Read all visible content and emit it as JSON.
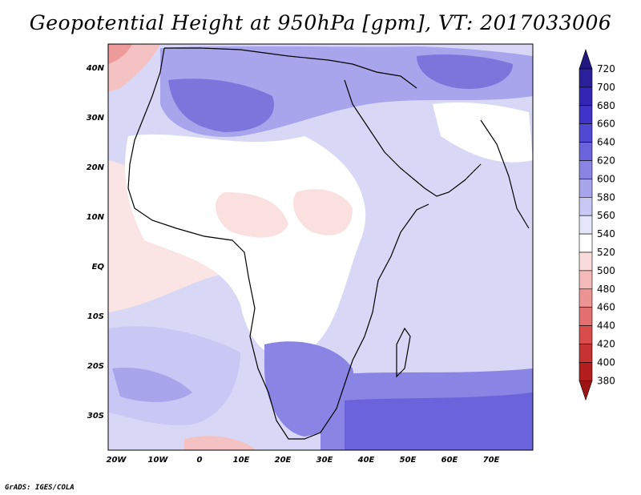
{
  "title": "Geopotential Height at 950hPa [gpm], VT: 2017033006",
  "credit": "GrADS: IGES/COLA",
  "lat_labels": [
    "40N",
    "30N",
    "20N",
    "10N",
    "EQ",
    "10S",
    "20S",
    "30S"
  ],
  "lon_labels": [
    "20W",
    "10W",
    "0",
    "10E",
    "20E",
    "30E",
    "40E",
    "50E",
    "60E",
    "70E"
  ],
  "colorbar": {
    "levels": [
      "720",
      "700",
      "680",
      "660",
      "640",
      "620",
      "600",
      "580",
      "560",
      "540",
      "520",
      "500",
      "480",
      "460",
      "440",
      "420",
      "400",
      "380"
    ],
    "colors": [
      "#2b1f9a",
      "#3326b4",
      "#3f33c8",
      "#5148d4",
      "#6b63dc",
      "#8a84e4",
      "#a9a5ec",
      "#c9c7f3",
      "#e6e6fa",
      "#ffffff",
      "#fadcdc",
      "#f4b9b9",
      "#ec9494",
      "#e46f6f",
      "#d94c4c",
      "#c73232",
      "#b51e1e"
    ],
    "top_color": "#22177f",
    "bottom_color": "#9e1414"
  },
  "map": {
    "ocean_color": "#d8d8f6",
    "land_neutral": "#ffffff",
    "high_color": "#7c75dc",
    "low_color": "#fadede"
  }
}
